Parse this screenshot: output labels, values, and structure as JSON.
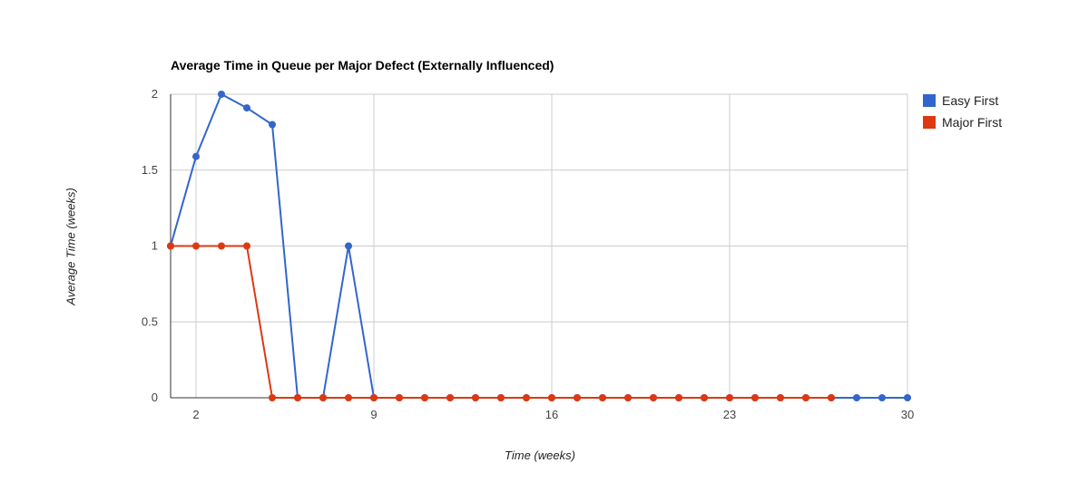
{
  "chart_data": {
    "type": "line",
    "title": "Average Time in Queue per Major Defect (Externally Influenced)",
    "xlabel": "Time (weeks)",
    "ylabel": "Average Time (weeks)",
    "xlim": [
      1,
      30
    ],
    "ylim": [
      0,
      2
    ],
    "x_ticks": [
      2,
      9,
      16,
      23,
      30
    ],
    "y_ticks": [
      0,
      0.5,
      1,
      1.5,
      2
    ],
    "x_tick_labels": [
      "2",
      "9",
      "16",
      "23",
      "30"
    ],
    "y_tick_labels": [
      "0",
      "0.5",
      "1",
      "1.5",
      "2"
    ],
    "grid": true,
    "legend_position": "right",
    "series": [
      {
        "name": "Easy First",
        "color": "#3366cc",
        "x": [
          1,
          2,
          3,
          4,
          5,
          6,
          7,
          8,
          9,
          10,
          11,
          12,
          13,
          14,
          15,
          16,
          17,
          18,
          19,
          20,
          21,
          22,
          23,
          24,
          25,
          26,
          27,
          28,
          29,
          30
        ],
        "values": [
          1,
          1.59,
          2,
          1.91,
          1.8,
          0,
          0,
          1,
          0,
          0,
          0,
          0,
          0,
          0,
          0,
          0,
          0,
          0,
          0,
          0,
          0,
          0,
          0,
          0,
          0,
          0,
          0,
          0,
          0,
          0
        ]
      },
      {
        "name": "Major First",
        "color": "#dc3912",
        "x": [
          1,
          2,
          3,
          4,
          5,
          6,
          7,
          8,
          9,
          10,
          11,
          12,
          13,
          14,
          15,
          16,
          17,
          18,
          19,
          20,
          21,
          22,
          23,
          24,
          25,
          26,
          27
        ],
        "values": [
          1,
          1,
          1,
          1,
          0,
          0,
          0,
          0,
          0,
          0,
          0,
          0,
          0,
          0,
          0,
          0,
          0,
          0,
          0,
          0,
          0,
          0,
          0,
          0,
          0,
          0,
          0
        ]
      }
    ]
  }
}
